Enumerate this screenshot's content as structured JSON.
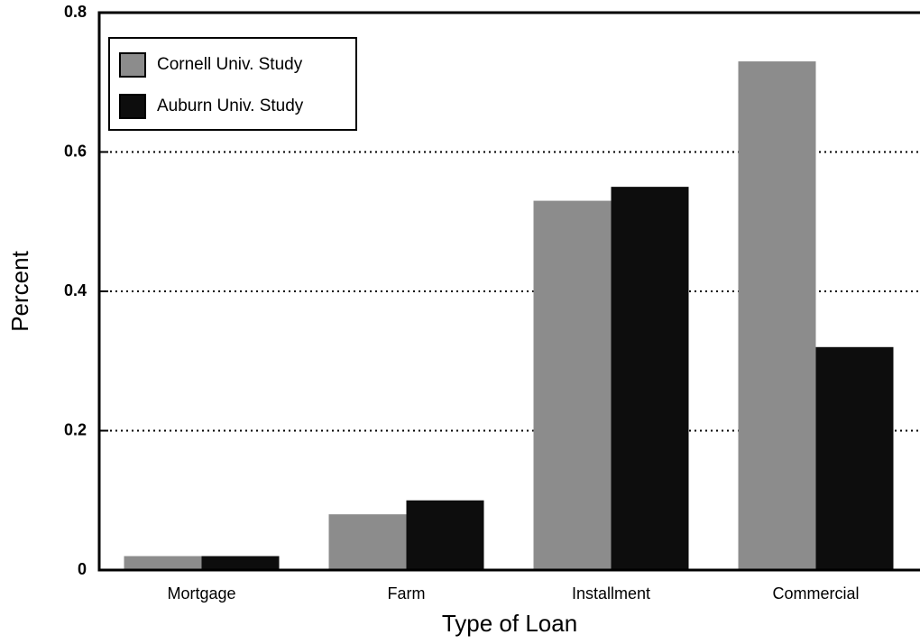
{
  "chart_data": {
    "type": "bar",
    "xlabel": "Type of Loan",
    "ylabel": "Percent",
    "categories": [
      "Mortgage",
      "Farm",
      "Installment",
      "Commercial"
    ],
    "series": [
      {
        "name": "Cornell Univ. Study",
        "color": "#8c8c8c",
        "values": [
          0.02,
          0.08,
          0.53,
          0.73
        ]
      },
      {
        "name": "Auburn Univ. Study",
        "color": "#0d0d0d",
        "values": [
          0.02,
          0.1,
          0.55,
          0.32
        ]
      }
    ],
    "ylim": [
      0,
      0.8
    ],
    "yticks": [
      0,
      0.2,
      0.4,
      0.6,
      0.8
    ],
    "grid": true,
    "legend": "upper left"
  }
}
